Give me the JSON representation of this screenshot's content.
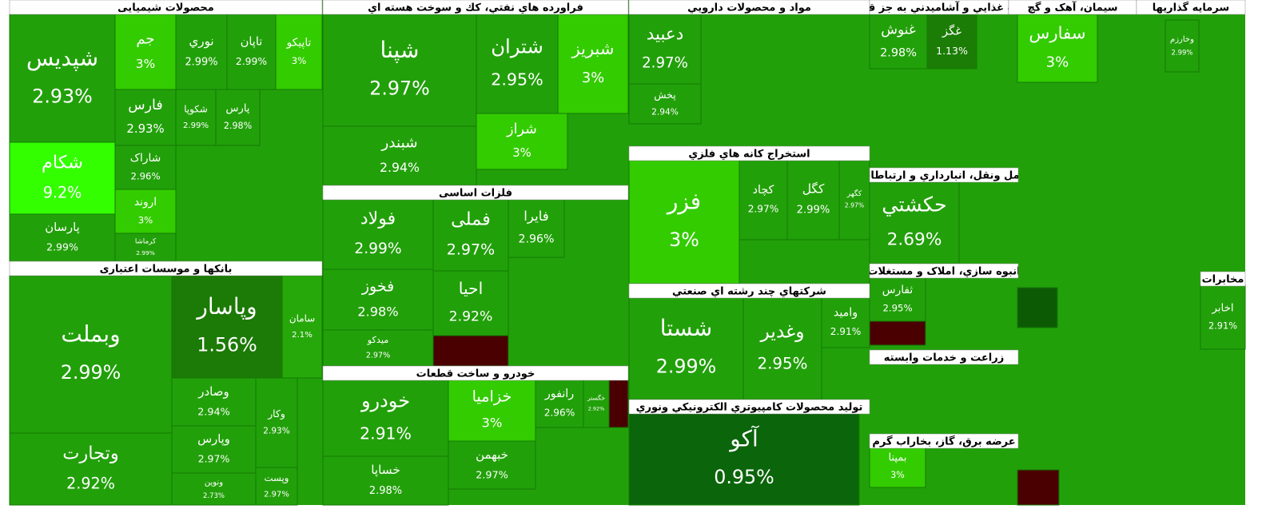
{
  "chart_data": {
    "type": "treemap",
    "groups": [
      {
        "name": "محصولات شیمیایی",
        "categories": [
          "شپدیس",
          "شکام",
          "پارسان",
          "جم",
          "نوري",
          "تاپان",
          "تاپیکو",
          "فارس",
          "شکوپا",
          "پارس",
          "شاراک",
          "اروند",
          "کرماشا"
        ],
        "values": [
          2.93,
          9.2,
          2.99,
          3,
          2.99,
          2.99,
          3,
          2.93,
          2.99,
          2.98,
          2.96,
          3,
          2.99
        ],
        "value_labels": [
          "2.93%",
          "9.2%",
          "2.99%",
          "3%",
          "2.99%",
          "2.99%",
          "3%",
          "2.93%",
          "2.99%",
          "2.98%",
          "2.96%",
          "3%",
          "2.99%"
        ],
        "colors": [
          "#22a00a",
          "#33ff00",
          "#22a00a",
          "#33cc00",
          "#22a00a",
          "#22a00a",
          "#33cc00",
          "#22a00a",
          "#22a00a",
          "#22a00a",
          "#22a00a",
          "#33cc00",
          "#22a00a"
        ]
      },
      {
        "name": "بانکها و موسسات اعتباری",
        "categories": [
          "وبملت",
          "وتجارت",
          "وپاسار",
          "سامان",
          "وصادر",
          "وپارس",
          "ونوین",
          "وکار",
          "وپست"
        ],
        "values": [
          2.99,
          2.92,
          1.56,
          2.1,
          2.94,
          2.97,
          2.73,
          2.93,
          2.97
        ],
        "value_labels": [
          "2.99%",
          "2.92%",
          "1.56%",
          "2.1%",
          "2.94%",
          "2.97%",
          "2.73%",
          "2.93%",
          "2.97%"
        ],
        "colors": [
          "#22a00a",
          "#22a00a",
          "#1c7a06",
          "#26a80a",
          "#22a00a",
          "#22a00a",
          "#22a00a",
          "#22a00a",
          "#22a00a"
        ]
      },
      {
        "name": "فراورده هاي نفتي، كك و سوخت هسته اي",
        "categories": [
          "شپنا",
          "شبندر",
          "شتران",
          "شبریز",
          "شراز"
        ],
        "values": [
          2.97,
          2.94,
          2.95,
          3,
          3
        ],
        "value_labels": [
          "2.97%",
          "2.94%",
          "2.95%",
          "3%",
          "3%"
        ],
        "colors": [
          "#22a00a",
          "#22a00a",
          "#22a00a",
          "#33cc00",
          "#33cc00"
        ]
      },
      {
        "name": "فلزات اساسی",
        "categories": [
          "فولاد",
          "فخوز",
          "میدکو",
          "فملی",
          "فایرا",
          "احیا"
        ],
        "values": [
          2.99,
          2.98,
          2.97,
          2.97,
          2.96,
          2.92
        ],
        "value_labels": [
          "2.99%",
          "2.98%",
          "2.97%",
          "2.97%",
          "2.96%",
          "2.92%"
        ],
        "colors": [
          "#22a00a",
          "#22a00a",
          "#22a00a",
          "#22a00a",
          "#22a00a",
          "#22a00a"
        ]
      },
      {
        "name": "خودرو و ساخت قطعات",
        "categories": [
          "خودرو",
          "خساپا",
          "خزامیا",
          "خبهمن",
          "رانفور",
          "خگستر"
        ],
        "values": [
          2.91,
          2.98,
          3,
          2.97,
          2.96,
          2.92
        ],
        "value_labels": [
          "2.91%",
          "2.98%",
          "3%",
          "2.97%",
          "2.96%",
          "2.92%"
        ],
        "colors": [
          "#22a00a",
          "#22a00a",
          "#33cc00",
          "#22a00a",
          "#22a00a",
          "#22a00a"
        ]
      },
      {
        "name": "مواد و محصولات دارويي",
        "categories": [
          "دعبید",
          "پخش"
        ],
        "values": [
          2.97,
          2.94
        ],
        "value_labels": [
          "2.97%",
          "2.94%"
        ],
        "colors": [
          "#22a00a",
          "#22a00a"
        ]
      },
      {
        "name": "استخراج کانه هاي فلزي",
        "categories": [
          "فزر",
          "کچاد",
          "کگل",
          "کگهر"
        ],
        "values": [
          3,
          2.97,
          2.99,
          2.97
        ],
        "value_labels": [
          "3%",
          "2.97%",
          "2.99%",
          "2.97%"
        ],
        "colors": [
          "#33cc00",
          "#22a00a",
          "#22a00a",
          "#22a00a"
        ]
      },
      {
        "name": "شرکتهاي چند رشته اي صنعتي",
        "categories": [
          "شستا",
          "وغدير",
          "وامید"
        ],
        "values": [
          2.99,
          2.95,
          2.91
        ],
        "value_labels": [
          "2.99%",
          "2.95%",
          "2.91%"
        ],
        "colors": [
          "#22a00a",
          "#22a00a",
          "#22a00a"
        ]
      },
      {
        "name": "توليد محصولات کامپيوتري الکترونيکي ونوري",
        "categories": [
          "آکو"
        ],
        "values": [
          0.95
        ],
        "value_labels": [
          "0.95%"
        ],
        "colors": [
          "#0b650b"
        ]
      },
      {
        "name": "محصولات غذايي و آشاميدني به جز قند و شکر",
        "categories": [
          "غنوش",
          "غگز"
        ],
        "values": [
          2.98,
          1.13
        ],
        "value_labels": [
          "2.98%",
          "1.13%"
        ],
        "colors": [
          "#22a00a",
          "#1b7d05"
        ]
      },
      {
        "name": "سیمان، آهک و گچ",
        "categories": [
          "سفارس"
        ],
        "values": [
          3
        ],
        "value_labels": [
          "3%"
        ],
        "colors": [
          "#33cc00"
        ]
      },
      {
        "name": "سرمایه گذاریها",
        "categories": [
          "وخارزم"
        ],
        "values": [
          2.99
        ],
        "value_labels": [
          "2.99%"
        ],
        "colors": [
          "#22a00a"
        ]
      },
      {
        "name": "حمل ونقل، انبارداري و ارتباطات",
        "categories": [
          "حکشتي"
        ],
        "values": [
          2.69
        ],
        "value_labels": [
          "2.69%"
        ],
        "colors": [
          "#22a00a"
        ]
      },
      {
        "name": "انبوه سازي، املاک و مستغلات",
        "categories": [
          "ثفارس"
        ],
        "values": [
          2.95
        ],
        "value_labels": [
          "2.95%"
        ],
        "colors": [
          "#22a00a"
        ]
      },
      {
        "name": "زراعت و خدمات وابسته",
        "categories": [],
        "values": [],
        "value_labels": [],
        "colors": []
      },
      {
        "name": "عرضه برق، گاز، بخاراب گرم",
        "categories": [
          "بمپنا"
        ],
        "values": [
          3
        ],
        "value_labels": [
          "3%"
        ],
        "colors": [
          "#33cc00"
        ]
      },
      {
        "name": "مخابرات",
        "categories": [
          "اخابر"
        ],
        "values": [
          2.91
        ],
        "value_labels": [
          "2.91%"
        ],
        "colors": [
          "#22a00a"
        ]
      }
    ]
  }
}
